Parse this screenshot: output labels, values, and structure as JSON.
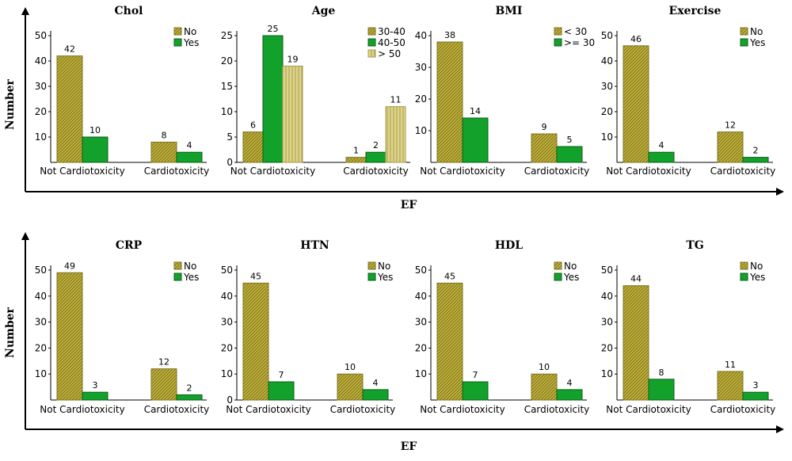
{
  "figure": {
    "y_axis_label": "Number",
    "x_axis_label": "EF",
    "colors": {
      "yellow": "#c2b23a",
      "yellow_hatch": "#7d7420",
      "light_yellow": "#ded488",
      "light_yellow_hatch": "#a89c52",
      "green": "#12a12a",
      "green_edge": "#0b5e18",
      "axis": "#000000"
    }
  },
  "chart_data": [
    {
      "type": "bar",
      "title": "Chol",
      "categories": [
        "Not Cardiotoxicity",
        "Cardiotoxicity"
      ],
      "series": [
        {
          "name": "No",
          "values": [
            42,
            8
          ]
        },
        {
          "name": "Yes",
          "values": [
            10,
            4
          ]
        }
      ],
      "yticks": [
        10,
        20,
        30,
        40,
        50
      ],
      "ylim": [
        0,
        50
      ],
      "legend": "top-right"
    },
    {
      "type": "bar",
      "title": "Age",
      "categories": [
        "Not Cardiotoxicity",
        "Cardiotoxicity"
      ],
      "series": [
        {
          "name": "30-40",
          "values": [
            6,
            1
          ]
        },
        {
          "name": "40-50",
          "values": [
            25,
            2
          ]
        },
        {
          "name": "> 50",
          "values": [
            19,
            11
          ]
        }
      ],
      "yticks": [
        0,
        5,
        10,
        15,
        20,
        25
      ],
      "ylim": [
        0,
        25
      ],
      "legend": "top-right"
    },
    {
      "type": "bar",
      "title": "BMI",
      "categories": [
        "Not Cardiotoxicity",
        "Cardiotoxicity"
      ],
      "series": [
        {
          "name": "< 30",
          "values": [
            38,
            9
          ]
        },
        {
          "name": ">= 30",
          "values": [
            14,
            5
          ]
        }
      ],
      "yticks": [
        10,
        20,
        30,
        40
      ],
      "ylim": [
        0,
        40
      ],
      "legend": "top-right"
    },
    {
      "type": "bar",
      "title": "Exercise",
      "categories": [
        "Not Cardiotoxicity",
        "Cardiotoxicity"
      ],
      "series": [
        {
          "name": "No",
          "values": [
            46,
            12
          ]
        },
        {
          "name": "Yes",
          "values": [
            4,
            2
          ]
        }
      ],
      "yticks": [
        10,
        20,
        30,
        40,
        50
      ],
      "ylim": [
        0,
        50
      ],
      "legend": "top-right"
    },
    {
      "type": "bar",
      "title": "CRP",
      "categories": [
        "Not Cardiotoxicity",
        "Cardiotoxicity"
      ],
      "series": [
        {
          "name": "No",
          "values": [
            49,
            12
          ]
        },
        {
          "name": "Yes",
          "values": [
            3,
            2
          ]
        }
      ],
      "yticks": [
        10,
        20,
        30,
        40,
        50
      ],
      "ylim": [
        0,
        50
      ],
      "legend": "top-right"
    },
    {
      "type": "bar",
      "title": "HTN",
      "categories": [
        "Not Cardiotoxicity",
        "Cardiotoxicity"
      ],
      "series": [
        {
          "name": "No",
          "values": [
            45,
            10
          ]
        },
        {
          "name": "Yes",
          "values": [
            7,
            4
          ]
        }
      ],
      "yticks": [
        0,
        10,
        20,
        30,
        40,
        50
      ],
      "ylim": [
        0,
        50
      ],
      "legend": "top-right"
    },
    {
      "type": "bar",
      "title": "HDL",
      "categories": [
        "Not Cardiotoxicity",
        "Cardiotoxicity"
      ],
      "series": [
        {
          "name": "No",
          "values": [
            45,
            10
          ]
        },
        {
          "name": "Yes",
          "values": [
            7,
            4
          ]
        }
      ],
      "yticks": [
        10,
        20,
        30,
        40,
        50
      ],
      "ylim": [
        0,
        50
      ],
      "legend": "top-right"
    },
    {
      "type": "bar",
      "title": "TG",
      "categories": [
        "Not Cardiotoxicity",
        "Cardiotoxicity"
      ],
      "series": [
        {
          "name": "No",
          "values": [
            44,
            11
          ]
        },
        {
          "name": "Yes",
          "values": [
            8,
            3
          ]
        }
      ],
      "yticks": [
        10,
        20,
        30,
        40,
        50
      ],
      "ylim": [
        0,
        50
      ],
      "legend": "top-right"
    }
  ]
}
